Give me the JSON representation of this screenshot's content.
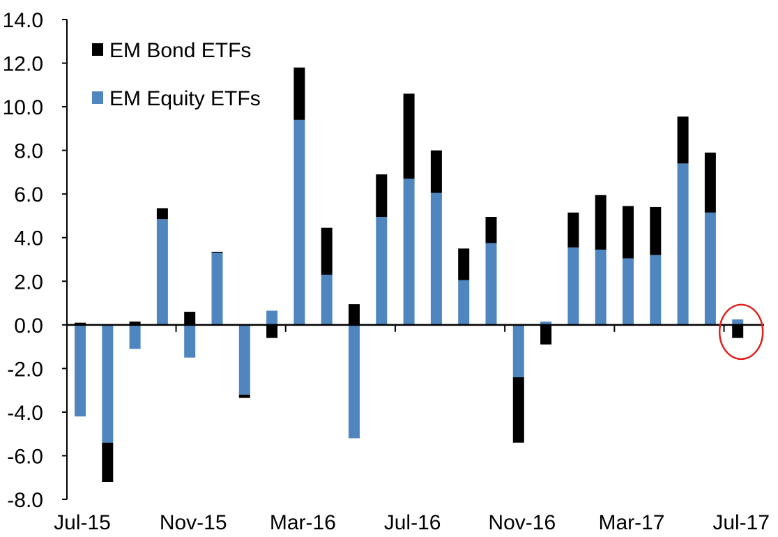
{
  "chart_data": {
    "type": "bar",
    "stacked": true,
    "categories": [
      "Jul-15",
      "Aug-15",
      "Sep-15",
      "Oct-15",
      "Nov-15",
      "Dec-15",
      "Jan-16",
      "Feb-16",
      "Mar-16",
      "Apr-16",
      "May-16",
      "Jun-16",
      "Jul-16",
      "Aug-16",
      "Sep-16",
      "Oct-16",
      "Nov-16",
      "Dec-16",
      "Jan-17",
      "Feb-17",
      "Mar-17",
      "Apr-17",
      "May-17",
      "Jun-17",
      "Jul-17"
    ],
    "x_tick_labels": [
      "Jul-15",
      "Nov-15",
      "Mar-16",
      "Jul-16",
      "Nov-16",
      "Mar-17",
      "Jul-17"
    ],
    "series": [
      {
        "name": "EM Equity ETFs",
        "color": "#4f86c0",
        "values": [
          -4.2,
          -5.4,
          -1.1,
          4.85,
          -1.5,
          3.3,
          -3.2,
          0.65,
          9.4,
          2.3,
          -5.2,
          4.95,
          6.7,
          6.05,
          2.05,
          3.75,
          -2.4,
          0.15,
          3.55,
          3.45,
          3.05,
          3.2,
          7.4,
          5.15,
          0.25
        ]
      },
      {
        "name": "EM Bond ETFs",
        "color": "#000000",
        "values": [
          0.1,
          -1.8,
          0.15,
          0.5,
          0.6,
          0.05,
          -0.15,
          -0.6,
          2.4,
          2.15,
          0.95,
          1.95,
          3.9,
          1.95,
          1.45,
          1.2,
          -3.0,
          -0.9,
          1.6,
          2.5,
          2.4,
          2.2,
          2.15,
          2.75,
          -0.6
        ]
      }
    ],
    "ylim": [
      -8.0,
      14.0
    ],
    "y_ticks": [
      "14.0",
      "12.0",
      "10.0",
      "8.0",
      "6.0",
      "4.0",
      "2.0",
      "0.0",
      "-2.0",
      "-4.0",
      "-6.0",
      "-8.0"
    ],
    "xlabel": "",
    "ylabel": "",
    "title": "",
    "legend": {
      "position": "top-left",
      "entries": [
        {
          "label": "EM Bond ETFs",
          "color": "#000000"
        },
        {
          "label": "EM Equity ETFs",
          "color": "#4f86c0"
        }
      ]
    },
    "grid": false,
    "annotation": {
      "shape": "circle",
      "color": "#e0201b",
      "target_category": "Jul-17"
    }
  }
}
